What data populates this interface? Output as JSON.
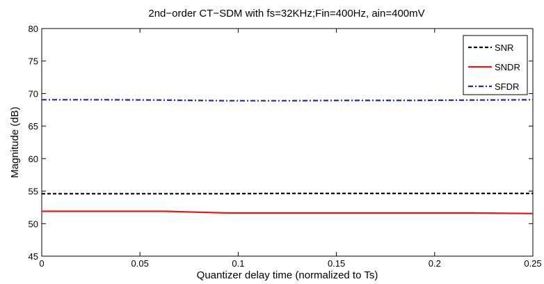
{
  "chart_data": {
    "type": "line",
    "title": "2nd−order CT−SDM with fs=32KHz;Fin=400Hz, ain=400mV",
    "xlabel": "Quantizer delay time (normalized to Ts)",
    "ylabel": "Magnitude (dB)",
    "xlim": [
      0,
      0.25
    ],
    "ylim": [
      45,
      80
    ],
    "xticks": [
      0,
      0.05,
      0.1,
      0.15,
      0.2,
      0.25
    ],
    "xtick_labels": [
      "0",
      "0.05",
      "0.1",
      "0.15",
      "0.2",
      "0.25"
    ],
    "yticks": [
      45,
      50,
      55,
      60,
      65,
      70,
      75,
      80
    ],
    "ytick_labels": [
      "45",
      "50",
      "55",
      "60",
      "65",
      "70",
      "75",
      "80"
    ],
    "grid": false,
    "legend_position": "top-right",
    "x": [
      0,
      0.03125,
      0.0625,
      0.09375,
      0.125,
      0.15625,
      0.1875,
      0.21875,
      0.25
    ],
    "series": [
      {
        "name": "SNR",
        "color": "#000000",
        "dash": "dashed",
        "values": [
          54.6,
          54.6,
          54.6,
          54.6,
          54.65,
          54.65,
          54.65,
          54.65,
          54.65
        ]
      },
      {
        "name": "SNDR",
        "color": "#e31a1c",
        "dash": "solid",
        "values": [
          51.9,
          51.9,
          51.9,
          51.65,
          51.65,
          51.65,
          51.65,
          51.65,
          51.55
        ]
      },
      {
        "name": "SFDR",
        "color": "#1f2a9b",
        "dash": "dashdot",
        "values": [
          69.05,
          69.05,
          69.0,
          68.9,
          68.9,
          68.95,
          68.95,
          69.0,
          69.05
        ]
      }
    ]
  }
}
